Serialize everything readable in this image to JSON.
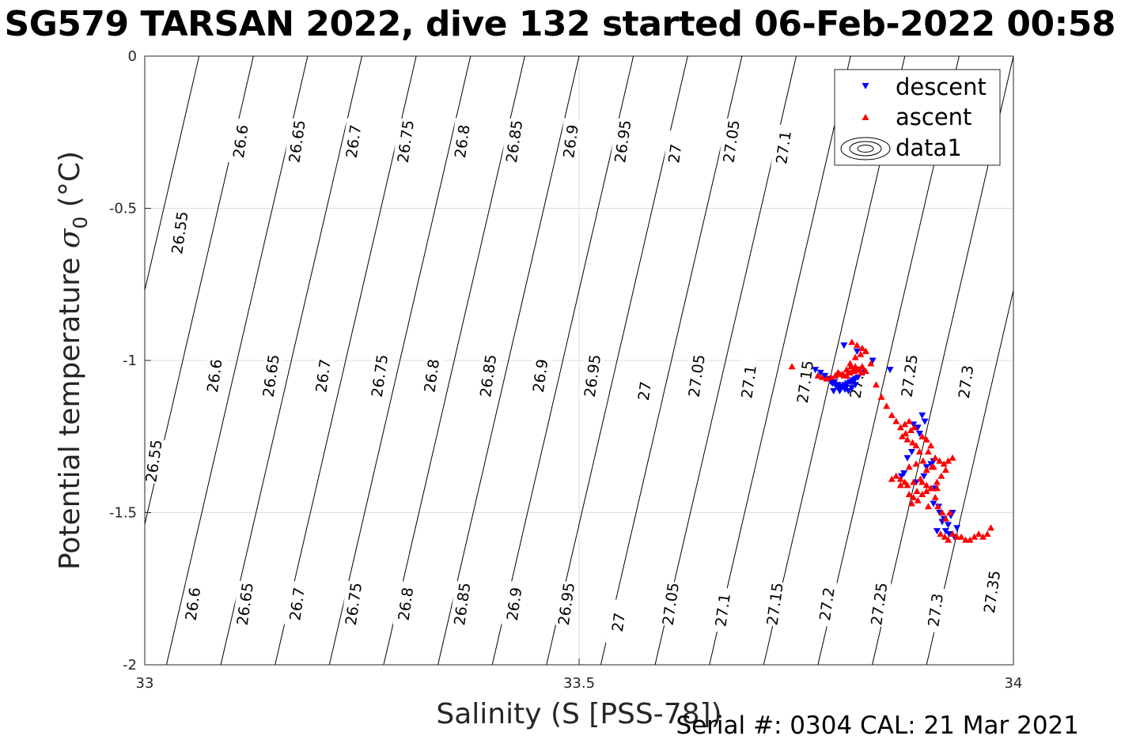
{
  "chart_data": {
    "type": "scatter",
    "title": "SG579 TARSAN 2022, dive 132 started 06-Feb-2022 00:58",
    "xlabel": "Salinity (S [PSS-78])",
    "ylabel_main": "Potential temperature ",
    "ylabel_sigma": "σ",
    "ylabel_sub": "0",
    "ylabel_unit": " (°C)",
    "xlim": [
      33,
      34
    ],
    "ylim": [
      -2,
      0
    ],
    "x_ticks": [
      33,
      33.5,
      34
    ],
    "x_tick_labels": [
      "33",
      "33.5",
      "34"
    ],
    "y_ticks": [
      0,
      -0.5,
      -1,
      -1.5,
      -2
    ],
    "y_tick_labels": [
      "0",
      "-0.5",
      "-1",
      "-1.5",
      "-2"
    ],
    "grid": true,
    "legend_placement": "top-right",
    "legend": [
      "descent",
      "ascent",
      "data1"
    ],
    "contour_levels": [
      26.55,
      26.6,
      26.65,
      26.7,
      26.75,
      26.8,
      26.85,
      26.9,
      26.95,
      27,
      27.05,
      27.1,
      27.15,
      27.2,
      27.25,
      27.3,
      27.35
    ],
    "contour_labels": [
      {
        "text": "26.55",
        "s": 33.04,
        "t": -0.58
      },
      {
        "text": "26.55",
        "s": 33.01,
        "t": -1.33
      },
      {
        "text": "26.6",
        "s": 33.11,
        "t": -0.28
      },
      {
        "text": "26.6",
        "s": 33.08,
        "t": -1.05
      },
      {
        "text": "26.6",
        "s": 33.055,
        "t": -1.8
      },
      {
        "text": "26.65",
        "s": 33.175,
        "t": -0.28
      },
      {
        "text": "26.65",
        "s": 33.145,
        "t": -1.05
      },
      {
        "text": "26.65",
        "s": 33.115,
        "t": -1.8
      },
      {
        "text": "26.7",
        "s": 33.24,
        "t": -0.28
      },
      {
        "text": "26.7",
        "s": 33.205,
        "t": -1.05
      },
      {
        "text": "26.7",
        "s": 33.175,
        "t": -1.8
      },
      {
        "text": "26.75",
        "s": 33.3,
        "t": -0.28
      },
      {
        "text": "26.75",
        "s": 33.27,
        "t": -1.05
      },
      {
        "text": "26.75",
        "s": 33.24,
        "t": -1.8
      },
      {
        "text": "26.8",
        "s": 33.365,
        "t": -0.28
      },
      {
        "text": "26.8",
        "s": 33.33,
        "t": -1.05
      },
      {
        "text": "26.8",
        "s": 33.3,
        "t": -1.8
      },
      {
        "text": "26.85",
        "s": 33.425,
        "t": -0.28
      },
      {
        "text": "26.85",
        "s": 33.395,
        "t": -1.05
      },
      {
        "text": "26.85",
        "s": 33.365,
        "t": -1.8
      },
      {
        "text": "26.9",
        "s": 33.49,
        "t": -0.28
      },
      {
        "text": "26.9",
        "s": 33.455,
        "t": -1.05
      },
      {
        "text": "26.9",
        "s": 33.425,
        "t": -1.8
      },
      {
        "text": "26.95",
        "s": 33.55,
        "t": -0.28
      },
      {
        "text": "26.95",
        "s": 33.515,
        "t": -1.05
      },
      {
        "text": "26.95",
        "s": 33.485,
        "t": -1.8
      },
      {
        "text": "27",
        "s": 33.61,
        "t": -0.32
      },
      {
        "text": "27",
        "s": 33.575,
        "t": -1.1
      },
      {
        "text": "27",
        "s": 33.545,
        "t": -1.86
      },
      {
        "text": "27.05",
        "s": 33.675,
        "t": -0.28
      },
      {
        "text": "27.05",
        "s": 33.635,
        "t": -1.05
      },
      {
        "text": "27.05",
        "s": 33.605,
        "t": -1.8
      },
      {
        "text": "27.1",
        "s": 33.735,
        "t": -0.3
      },
      {
        "text": "27.1",
        "s": 33.695,
        "t": -1.07
      },
      {
        "text": "27.1",
        "s": 33.665,
        "t": -1.82
      },
      {
        "text": "27.15",
        "s": 33.76,
        "t": -1.07
      },
      {
        "text": "27.15",
        "s": 33.725,
        "t": -1.8
      },
      {
        "text": "27.2",
        "s": 33.82,
        "t": -1.07
      },
      {
        "text": "27.2",
        "s": 33.785,
        "t": -1.8
      },
      {
        "text": "27.25",
        "s": 33.88,
        "t": -1.05
      },
      {
        "text": "27.25",
        "s": 33.845,
        "t": -1.8
      },
      {
        "text": "27.3",
        "s": 33.945,
        "t": -1.07
      },
      {
        "text": "27.3",
        "s": 33.91,
        "t": -1.82
      },
      {
        "text": "27.35",
        "s": 33.975,
        "t": -1.76
      }
    ],
    "series": [
      {
        "name": "descent",
        "marker": "triangle-down",
        "color": "#0000ff",
        "s": [
          33.772,
          33.778,
          33.783,
          33.788,
          33.79,
          33.792,
          33.795,
          33.797,
          33.8,
          33.803,
          33.806,
          33.809,
          33.812,
          33.815,
          33.818,
          33.821,
          33.785,
          33.79,
          33.794,
          33.798,
          33.802,
          33.806,
          33.81,
          33.814,
          33.818,
          33.793,
          33.8,
          33.807,
          33.805,
          33.82,
          33.838,
          33.828,
          33.858,
          33.895,
          33.898,
          33.885,
          33.89,
          33.892,
          33.883,
          33.878,
          33.9,
          33.905,
          33.908,
          33.897,
          33.91,
          33.888,
          33.871,
          33.874,
          33.915,
          33.92,
          33.925,
          33.928,
          33.93,
          33.918,
          33.912,
          33.922,
          33.932,
          33.926,
          33.914,
          33.935,
          33.908
        ],
        "t": [
          -1.03,
          -1.04,
          -1.05,
          -1.06,
          -1.07,
          -1.075,
          -1.08,
          -1.085,
          -1.09,
          -1.085,
          -1.08,
          -1.075,
          -1.07,
          -1.065,
          -1.06,
          -1.055,
          -1.06,
          -1.065,
          -1.07,
          -1.08,
          -1.09,
          -1.095,
          -1.1,
          -1.09,
          -1.08,
          -1.1,
          -1.1,
          -1.09,
          -0.95,
          -0.97,
          -1.0,
          -1.04,
          -1.03,
          -1.18,
          -1.2,
          -1.21,
          -1.22,
          -1.24,
          -1.3,
          -1.32,
          -1.35,
          -1.34,
          -1.33,
          -1.38,
          -1.42,
          -1.4,
          -1.38,
          -1.37,
          -1.5,
          -1.52,
          -1.54,
          -1.51,
          -1.5,
          -1.53,
          -1.56,
          -1.56,
          -1.58,
          -1.57,
          -1.48,
          -1.55,
          -1.47
        ],
        "s_extra": [],
        "t_extra": []
      },
      {
        "name": "ascent",
        "marker": "triangle-up",
        "color": "#ff0000",
        "s": [
          33.745,
          33.775,
          33.78,
          33.785,
          33.79,
          33.795,
          33.8,
          33.805,
          33.81,
          33.815,
          33.82,
          33.825,
          33.83,
          33.798,
          33.803,
          33.808,
          33.812,
          33.817,
          33.822,
          33.826,
          33.808,
          33.813,
          33.818,
          33.823,
          33.814,
          33.82,
          33.826,
          33.83,
          33.812,
          33.818,
          33.824,
          33.83,
          33.836,
          33.842,
          33.848,
          33.854,
          33.86,
          33.865,
          33.87,
          33.875,
          33.88,
          33.872,
          33.876,
          33.882,
          33.878,
          33.884,
          33.888,
          33.892,
          33.886,
          33.895,
          33.9,
          33.905,
          33.902,
          33.91,
          33.908,
          33.915,
          33.92,
          33.925,
          33.93,
          33.922,
          33.917,
          33.912,
          33.905,
          33.9,
          33.895,
          33.89,
          33.885,
          33.88,
          33.875,
          33.87,
          33.865,
          33.86,
          33.87,
          33.878,
          33.885,
          33.893,
          33.9,
          33.905,
          33.91,
          33.913,
          33.918,
          33.922,
          33.927,
          33.916,
          33.921,
          33.925,
          33.93,
          33.935,
          33.94,
          33.945,
          33.95,
          33.955,
          33.96,
          33.965,
          33.97,
          33.974,
          33.88,
          33.888,
          33.896,
          33.9,
          33.906,
          33.895,
          33.889,
          33.883,
          33.902,
          33.912
        ],
        "t": [
          -1.02,
          -1.05,
          -1.055,
          -1.06,
          -1.055,
          -1.05,
          -1.045,
          -1.05,
          -1.04,
          -1.035,
          -1.03,
          -1.04,
          -1.035,
          -1.04,
          -1.045,
          -1.05,
          -1.04,
          -1.035,
          -1.03,
          -1.02,
          -1.03,
          -1.02,
          -1.02,
          -1.03,
          -0.94,
          -0.95,
          -0.96,
          -0.97,
          -1.01,
          -0.99,
          -0.98,
          -0.97,
          -1.01,
          -1.08,
          -1.12,
          -1.15,
          -1.18,
          -1.2,
          -1.22,
          -1.21,
          -1.2,
          -1.25,
          -1.24,
          -1.23,
          -1.26,
          -1.27,
          -1.28,
          -1.3,
          -1.22,
          -1.25,
          -1.26,
          -1.28,
          -1.3,
          -1.32,
          -1.35,
          -1.33,
          -1.34,
          -1.33,
          -1.32,
          -1.36,
          -1.38,
          -1.4,
          -1.42,
          -1.43,
          -1.44,
          -1.46,
          -1.45,
          -1.44,
          -1.4,
          -1.39,
          -1.38,
          -1.39,
          -1.41,
          -1.41,
          -1.4,
          -1.39,
          -1.41,
          -1.42,
          -1.45,
          -1.48,
          -1.5,
          -1.52,
          -1.5,
          -1.57,
          -1.58,
          -1.59,
          -1.57,
          -1.58,
          -1.58,
          -1.59,
          -1.59,
          -1.58,
          -1.57,
          -1.58,
          -1.57,
          -1.55,
          -1.35,
          -1.34,
          -1.33,
          -1.36,
          -1.35,
          -1.4,
          -1.43,
          -1.47,
          -1.48,
          -1.42
        ]
      }
    ]
  },
  "footer": "Serial #: 0304  CAL: 21 Mar 2021"
}
